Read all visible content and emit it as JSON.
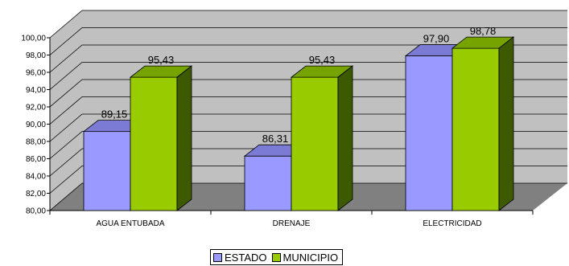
{
  "chart_data": {
    "type": "bar",
    "categories": [
      "AGUA ENTUBADA",
      "DRENAJE",
      "ELECTRICIDAD"
    ],
    "series": [
      {
        "name": "ESTADO",
        "values": [
          89.15,
          86.31,
          97.9
        ],
        "labels": [
          "89,15",
          "86,31",
          "97,90"
        ]
      },
      {
        "name": "MUNICIPIO",
        "values": [
          95.43,
          95.43,
          98.78
        ],
        "labels": [
          "95,43",
          "95,43",
          "98,78"
        ]
      }
    ],
    "ylim": [
      80,
      100
    ],
    "yticks": [
      "80,00",
      "82,00",
      "84,00",
      "86,00",
      "88,00",
      "90,00",
      "92,00",
      "94,00",
      "96,00",
      "98,00",
      "100,00"
    ],
    "grid": true,
    "legend": "bottom",
    "title": "",
    "xlabel": "",
    "ylabel": ""
  },
  "colors": {
    "series": [
      {
        "front": "#9999ff",
        "top": "#7b7bd6",
        "side": "#5a5aa6"
      },
      {
        "front": "#99cc00",
        "top": "#77a300",
        "side": "#3d5a00"
      }
    ],
    "wall": "#c0c0c0",
    "floor": "#808080"
  }
}
